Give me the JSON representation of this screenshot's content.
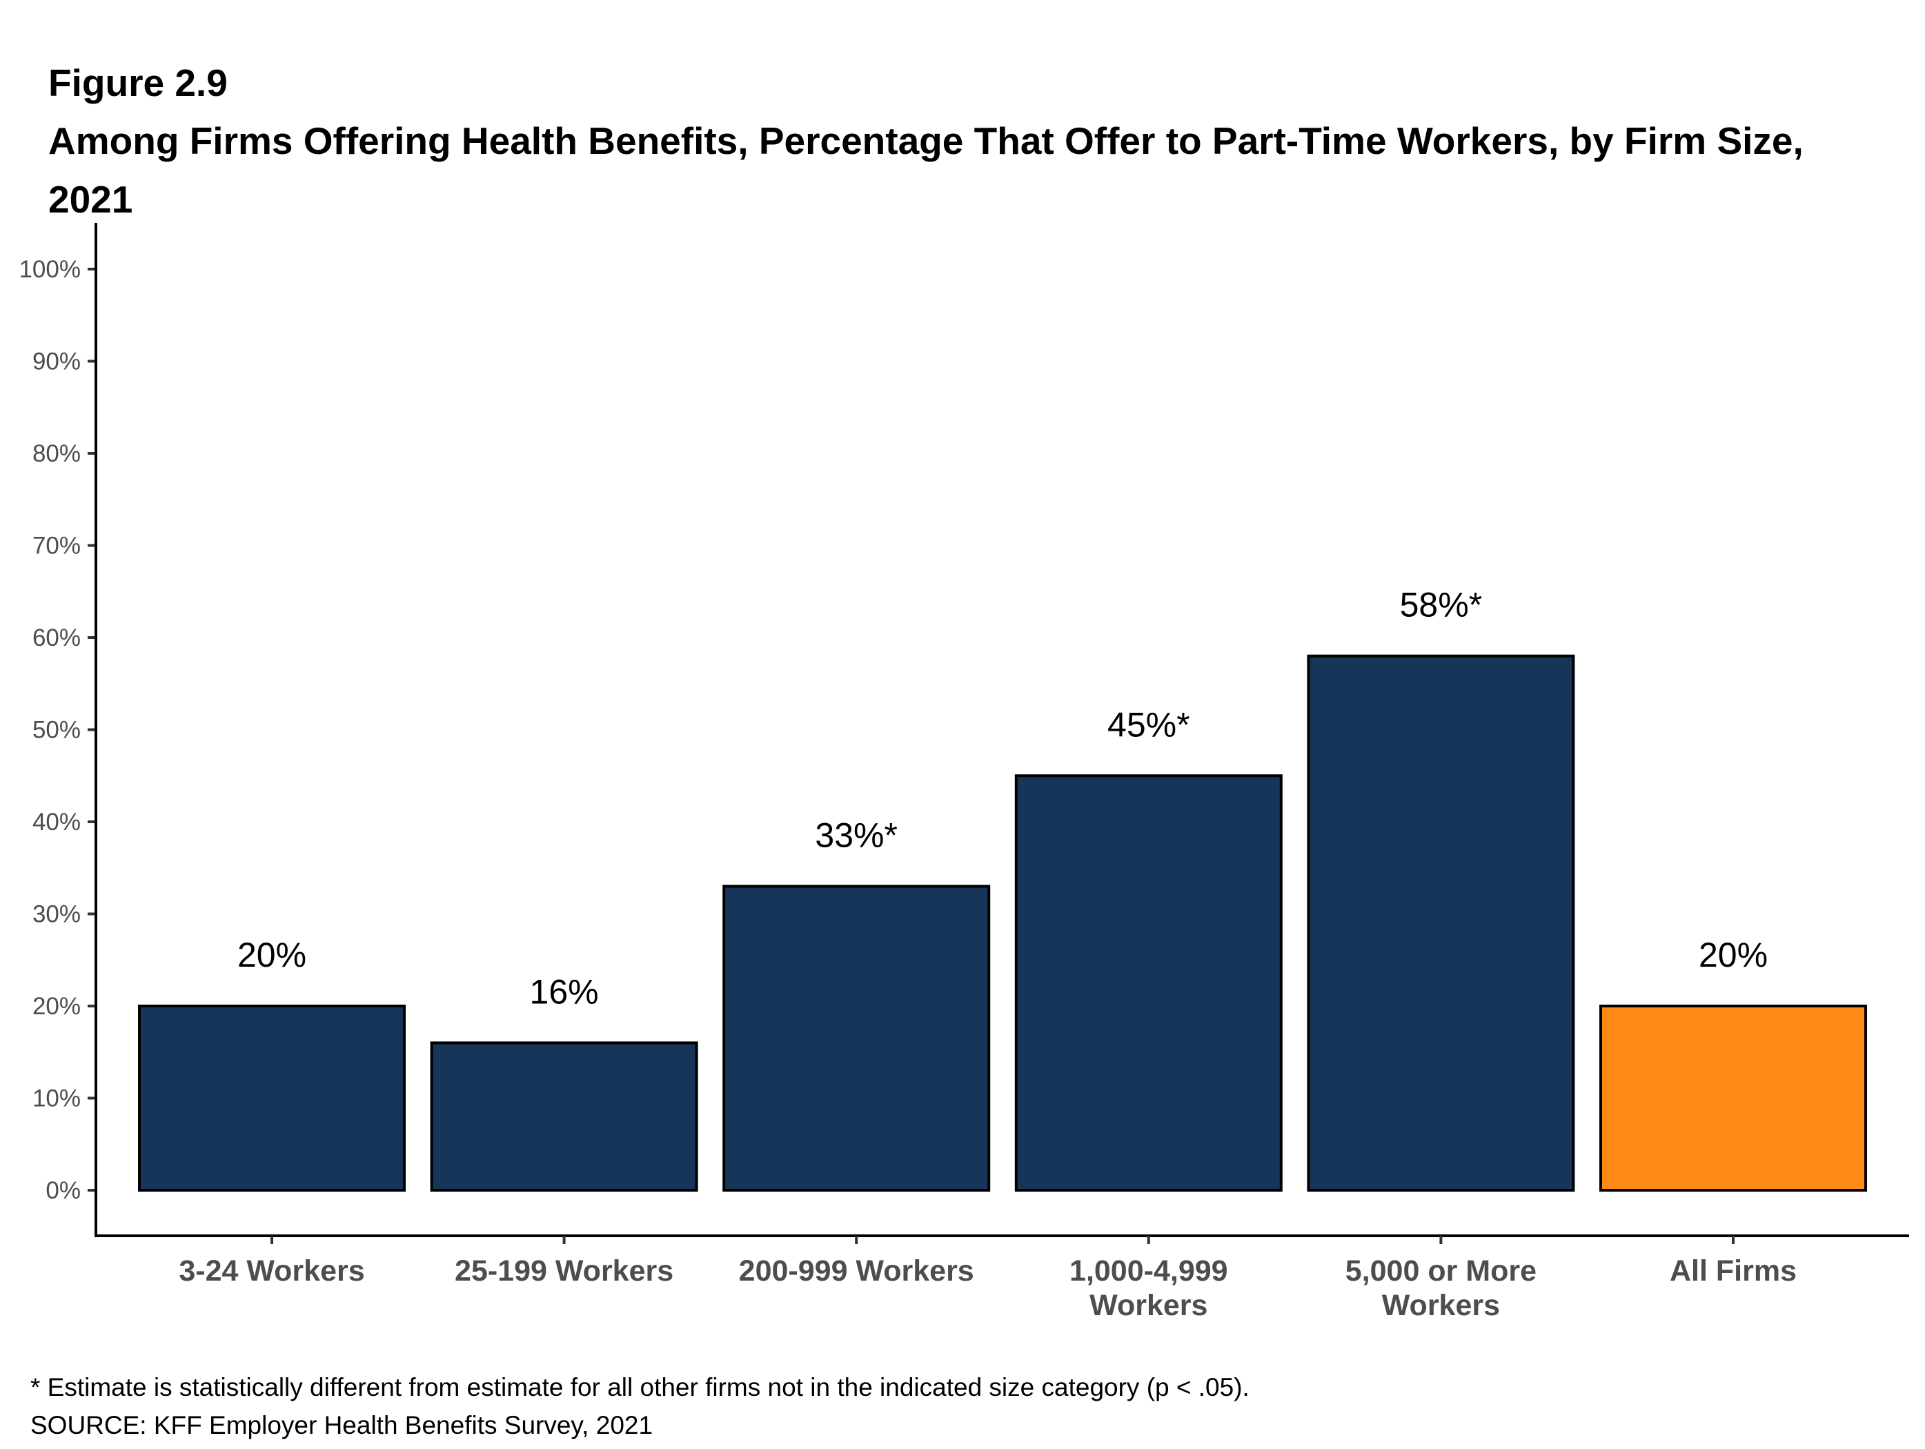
{
  "figure": {
    "number": "Figure 2.9",
    "title": "Among Firms Offering Health Benefits, Percentage That Offer to Part-Time Workers, by Firm Size, 2021"
  },
  "footnotes": {
    "significance": "* Estimate is statistically different from estimate for all other firms not in the indicated size category (p < .05).",
    "source": "SOURCE: KFF Employer Health Benefits Survey, 2021"
  },
  "colors": {
    "bar_default": "#163558",
    "bar_highlight": "#FF8915",
    "bar_outline": "#000000"
  },
  "chart_data": {
    "type": "bar",
    "title": "Among Firms Offering Health Benefits, Percentage That Offer to Part-Time Workers, by Firm Size, 2021",
    "xlabel": "",
    "ylabel": "",
    "ylim": [
      0,
      100
    ],
    "yticks": [
      0,
      10,
      20,
      30,
      40,
      50,
      60,
      70,
      80,
      90,
      100
    ],
    "ytick_labels": [
      "0%",
      "10%",
      "20%",
      "30%",
      "40%",
      "50%",
      "60%",
      "70%",
      "80%",
      "90%",
      "100%"
    ],
    "grid": false,
    "legend": "none",
    "categories": [
      [
        "3-24 Workers"
      ],
      [
        "25-199 Workers"
      ],
      [
        "200-999 Workers"
      ],
      [
        "1,000-4,999",
        "Workers"
      ],
      [
        "5,000 or More",
        "Workers"
      ],
      [
        "All Firms"
      ]
    ],
    "values": [
      20,
      16,
      33,
      45,
      58,
      20
    ],
    "data_labels": [
      "20%",
      "16%",
      "33%*",
      "45%*",
      "58%*",
      "20%"
    ],
    "significant": [
      false,
      false,
      true,
      true,
      true,
      false
    ],
    "highlight": [
      false,
      false,
      false,
      false,
      false,
      true
    ]
  }
}
